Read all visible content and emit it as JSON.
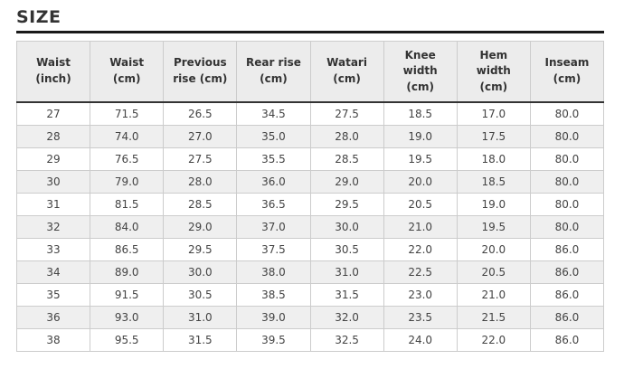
{
  "page": {
    "title": "SIZE"
  },
  "table": {
    "columns": [
      "Waist (inch)",
      "Waist (cm)",
      "Previous rise (cm)",
      "Rear rise (cm)",
      "Watari (cm)",
      "Knee width (cm)",
      "Hem width (cm)",
      "Inseam (cm)"
    ],
    "rows": [
      [
        "27",
        "71.5",
        "26.5",
        "34.5",
        "27.5",
        "18.5",
        "17.0",
        "80.0"
      ],
      [
        "28",
        "74.0",
        "27.0",
        "35.0",
        "28.0",
        "19.0",
        "17.5",
        "80.0"
      ],
      [
        "29",
        "76.5",
        "27.5",
        "35.5",
        "28.5",
        "19.5",
        "18.0",
        "80.0"
      ],
      [
        "30",
        "79.0",
        "28.0",
        "36.0",
        "29.0",
        "20.0",
        "18.5",
        "80.0"
      ],
      [
        "31",
        "81.5",
        "28.5",
        "36.5",
        "29.5",
        "20.5",
        "19.0",
        "80.0"
      ],
      [
        "32",
        "84.0",
        "29.0",
        "37.0",
        "30.0",
        "21.0",
        "19.5",
        "80.0"
      ],
      [
        "33",
        "86.5",
        "29.5",
        "37.5",
        "30.5",
        "22.0",
        "20.0",
        "86.0"
      ],
      [
        "34",
        "89.0",
        "30.0",
        "38.0",
        "31.0",
        "22.5",
        "20.5",
        "86.0"
      ],
      [
        "35",
        "91.5",
        "30.5",
        "38.5",
        "31.5",
        "23.0",
        "21.0",
        "86.0"
      ],
      [
        "36",
        "93.0",
        "31.0",
        "39.0",
        "32.0",
        "23.5",
        "21.5",
        "86.0"
      ],
      [
        "38",
        "95.5",
        "31.5",
        "39.5",
        "32.5",
        "24.0",
        "22.0",
        "86.0"
      ]
    ]
  },
  "colors": {
    "title_text": "#333333",
    "title_rule": "#1a1a1a",
    "header_bg": "#ececec",
    "header_text": "#333333",
    "header_border_bottom": "#333333",
    "cell_border": "#cccccc",
    "row_alt_bg": "#efefef",
    "body_text": "#444444"
  }
}
